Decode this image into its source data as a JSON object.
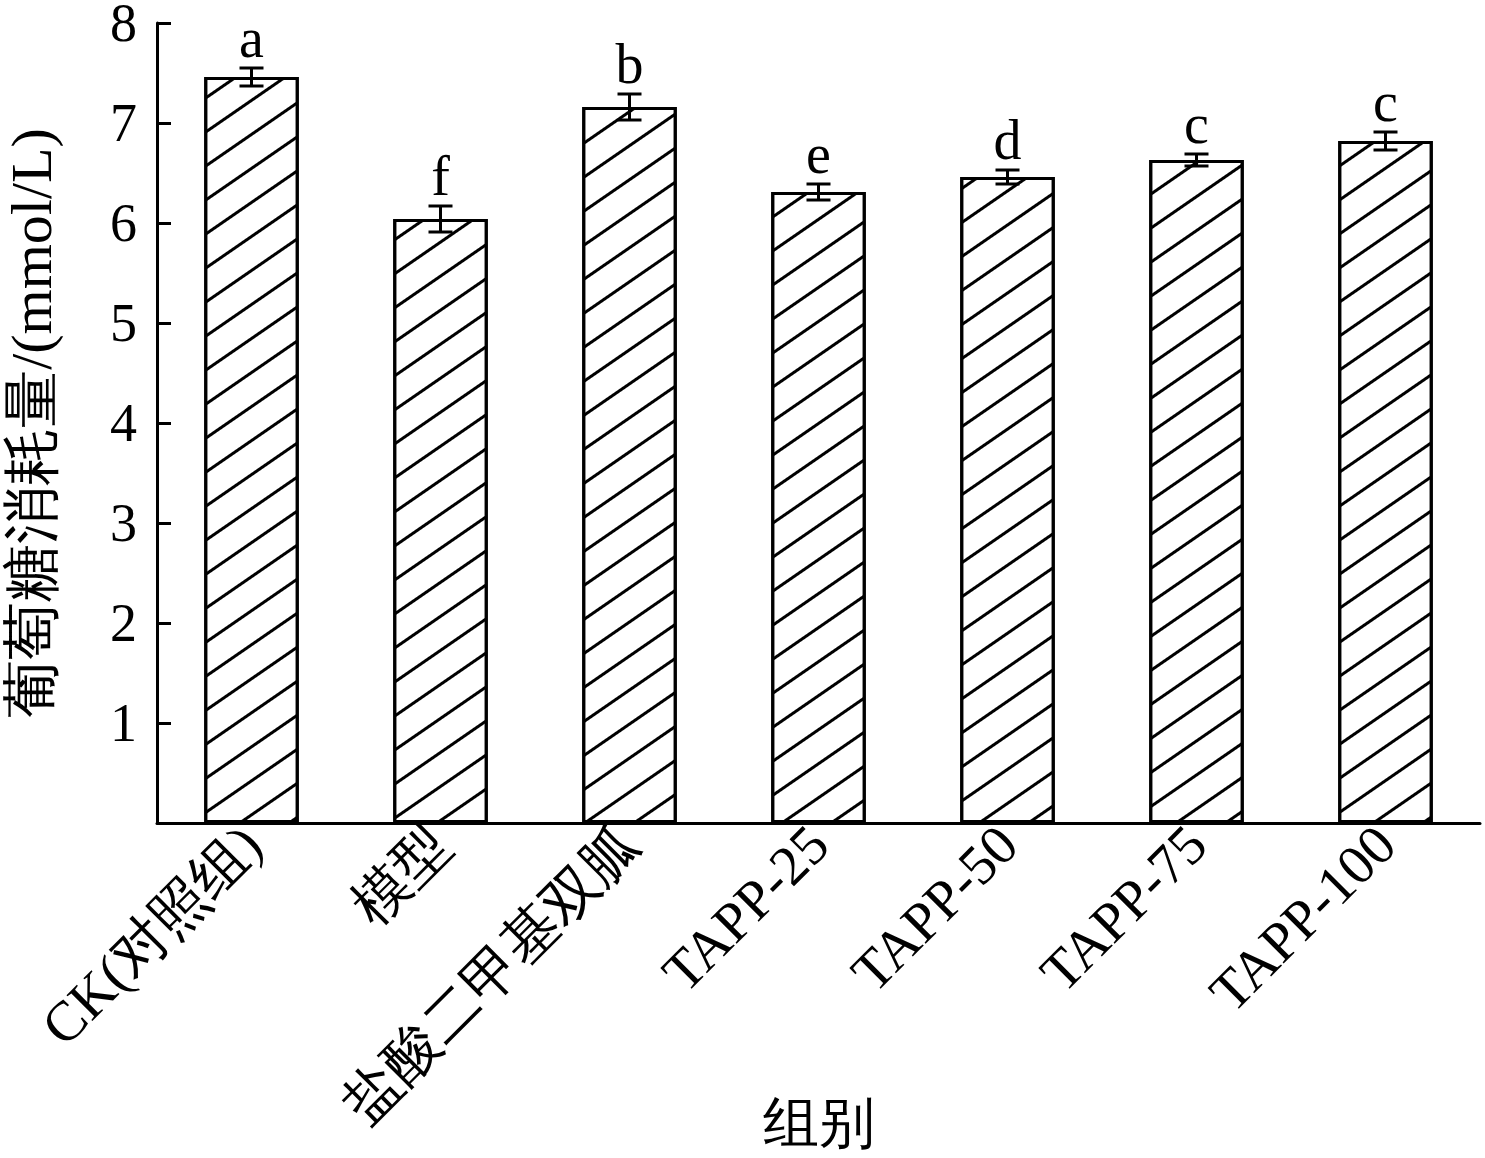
{
  "chart_data": {
    "type": "bar",
    "xlabel": "组别",
    "ylabel": "葡萄糖消耗量/(mmol/L)",
    "categories": [
      "CK(对照组)",
      "模型",
      "盐酸二甲基双胍",
      "TAPP-25",
      "TAPP-50",
      "TAPP-75",
      "TAPP-100"
    ],
    "values": [
      7.46,
      6.04,
      7.16,
      6.31,
      6.46,
      6.63,
      6.82
    ],
    "errors": [
      0.09,
      0.13,
      0.13,
      0.08,
      0.07,
      0.06,
      0.09
    ],
    "color": "#ffffff",
    "ylim": [
      0,
      8
    ],
    "yticks": [
      1,
      2,
      3,
      4,
      5,
      6,
      7,
      8
    ],
    "grid": false,
    "annotations": [
      {
        "text": "a",
        "x": "CK(对照组)",
        "y": 7.46
      },
      {
        "text": "f",
        "x": "模型",
        "y": 6.04
      },
      {
        "text": "b",
        "x": "盐酸二甲基双胍",
        "y": 7.16
      },
      {
        "text": "e",
        "x": "TAPP-25",
        "y": 6.31
      },
      {
        "text": "d",
        "x": "TAPP-50",
        "y": 6.46
      },
      {
        "text": "c",
        "x": "TAPP-75",
        "y": 6.63
      },
      {
        "text": "c",
        "x": "TAPP-100",
        "y": 6.82
      }
    ]
  }
}
